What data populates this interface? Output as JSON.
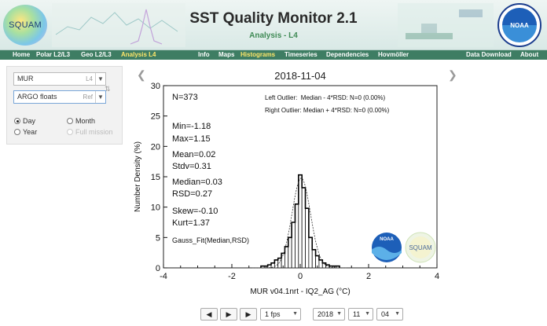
{
  "header": {
    "logo_text": "SQUAM",
    "title": "SST Quality Monitor 2.1",
    "subtitle": "Analysis - L4",
    "agency_logo_text": "NOAA"
  },
  "nav": {
    "items": [
      "Home",
      "Polar L2/L3",
      "Geo L2/L3",
      "Analysis L4",
      "Info",
      "Maps",
      "Histograms",
      "Timeseries",
      "Dependencies",
      "Hovmöller",
      "Data Download",
      "About"
    ],
    "active": [
      "Analysis L4",
      "Histograms"
    ]
  },
  "sidebar": {
    "product": {
      "value": "MUR",
      "level": "L4"
    },
    "reference": {
      "value": "ARGO floats",
      "tag": "Ref"
    },
    "periods": [
      {
        "label": "Day",
        "checked": true,
        "disabled": false
      },
      {
        "label": "Month",
        "checked": false,
        "disabled": false
      },
      {
        "label": "Year",
        "checked": false,
        "disabled": false
      },
      {
        "label": "Full mission",
        "checked": false,
        "disabled": true
      }
    ]
  },
  "chart": {
    "date": "2018-11-04",
    "stats": [
      "N=373",
      "Min=-1.18",
      "Max=1.15",
      "Mean=0.02",
      "Stdv=0.31",
      "Median=0.03",
      "RSD=0.27",
      "Skew=-0.10",
      "Kurt=1.37",
      "Gauss_Fit(Median,RSD)"
    ],
    "outliers": [
      "Left Outlier:  Median - 4*RSD: N=0 (0.00%)",
      "Right Outlier: Median + 4*RSD: N=0 (0.00%)"
    ],
    "watermarks": [
      "NOAA",
      "SQUAM"
    ]
  },
  "chart_data": {
    "type": "bar",
    "title": "2018-11-04",
    "xlabel": "MUR v04.1nrt - IQ2_AG (°C)",
    "ylabel": "Number Density (%)",
    "xlim": [
      -4,
      4
    ],
    "ylim": [
      0,
      30
    ],
    "xticks": [
      -4,
      -2,
      0,
      2,
      4
    ],
    "yticks": [
      0,
      5,
      10,
      15,
      20,
      25,
      30
    ],
    "bin_width": 0.1,
    "bins_x": [
      -1.1,
      -1.0,
      -0.9,
      -0.8,
      -0.7,
      -0.6,
      -0.5,
      -0.4,
      -0.3,
      -0.2,
      -0.1,
      0.0,
      0.1,
      0.2,
      0.3,
      0.4,
      0.5,
      0.6,
      0.7,
      0.8,
      0.9,
      1.0,
      1.1
    ],
    "values": [
      0.3,
      0.3,
      0.5,
      0.8,
      1.3,
      1.6,
      2.4,
      3.5,
      5.0,
      7.5,
      10.5,
      15.3,
      13.2,
      9.8,
      5.0,
      3.0,
      2.0,
      1.3,
      0.8,
      0.5,
      0.3,
      0.3,
      0.3
    ],
    "gauss_fit": {
      "mean": 0.03,
      "sigma": 0.27
    },
    "grid": false
  },
  "controls": {
    "prev": "◀",
    "play": "▶",
    "next": "▶",
    "fps": "1 fps",
    "year": "2018",
    "month": "11",
    "day": "04"
  }
}
